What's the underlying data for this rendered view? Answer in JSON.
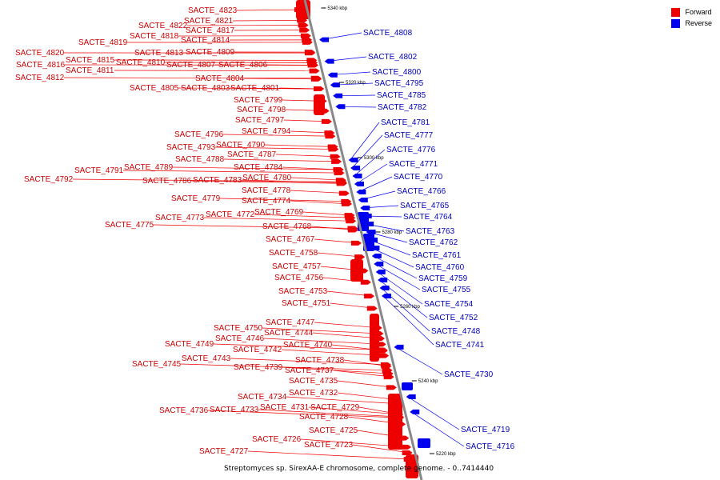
{
  "title": "Streptomyces sp. SirexAA-E chromosome, complete genome. - 0..7414440",
  "legend": [
    {
      "label": "Forward",
      "color": "#ee0000"
    },
    {
      "label": "Reverse",
      "color": "#0000ee"
    }
  ],
  "colors": {
    "forward": "#ee0000",
    "reverse": "#0000ee",
    "forward_text": "#cc0000",
    "reverse_text": "#0000bb",
    "backbone": "#888888"
  },
  "ticks": [
    "5340 kbp",
    "5320 kbp",
    "5300 kbp",
    "5280 kbp",
    "5260 kbp",
    "5240 kbp",
    "5220 kbp"
  ],
  "forward_genes": [
    "SACTE_4823",
    "SACTE_4821",
    "SACTE_4822",
    "SACTE_4817",
    "SACTE_4818",
    "SACTE_4814",
    "SACTE_4819",
    "SACTE_4820",
    "SACTE_4813",
    "SACTE_4809",
    "SACTE_4815",
    "SACTE_4816",
    "SACTE_4810",
    "SACTE_4807",
    "SACTE_4806",
    "SACTE_4811",
    "SACTE_4812",
    "SACTE_4804",
    "SACTE_4805",
    "SACTE_4803",
    "SACTE_4801",
    "SACTE_4799",
    "SACTE_4798",
    "SACTE_4797",
    "SACTE_4796",
    "SACTE_4794",
    "SACTE_4793",
    "SACTE_4790",
    "SACTE_4787",
    "SACTE_4788",
    "SACTE_4791",
    "SACTE_4789",
    "SACTE_4784",
    "SACTE_4792",
    "SACTE_4786",
    "SACTE_4783",
    "SACTE_4780",
    "SACTE_4778",
    "SACTE_4779",
    "SACTE_4774",
    "SACTE_4773",
    "SACTE_4772",
    "SACTE_4769",
    "SACTE_4775",
    "SACTE_4768",
    "SACTE_4767",
    "SACTE_4758",
    "SACTE_4757",
    "SACTE_4756",
    "SACTE_4753",
    "SACTE_4751",
    "SACTE_4747",
    "SACTE_4750",
    "SACTE_4744",
    "SACTE_4746",
    "SACTE_4740",
    "SACTE_4749",
    "SACTE_4742",
    "SACTE_4743",
    "SACTE_4738",
    "SACTE_4745",
    "SACTE_4739",
    "SACTE_4737",
    "SACTE_4735",
    "SACTE_4734",
    "SACTE_4732",
    "SACTE_4731",
    "SACTE_4729",
    "SACTE_4736",
    "SACTE_4733",
    "SACTE_4728",
    "SACTE_4725",
    "SACTE_4726",
    "SACTE_4723",
    "SACTE_4727"
  ],
  "reverse_genes": [
    "SACTE_4808",
    "SACTE_4802",
    "SACTE_4800",
    "SACTE_4795",
    "SACTE_4785",
    "SACTE_4782",
    "SACTE_4781",
    "SACTE_4777",
    "SACTE_4776",
    "SACTE_4771",
    "SACTE_4770",
    "SACTE_4766",
    "SACTE_4765",
    "SACTE_4764",
    "SACTE_4763",
    "SACTE_4762",
    "SACTE_4761",
    "SACTE_4760",
    "SACTE_4759",
    "SACTE_4755",
    "SACTE_4754",
    "SACTE_4752",
    "SACTE_4748",
    "SACTE_4741",
    "SACTE_4730",
    "SACTE_4719",
    "SACTE_4716"
  ]
}
